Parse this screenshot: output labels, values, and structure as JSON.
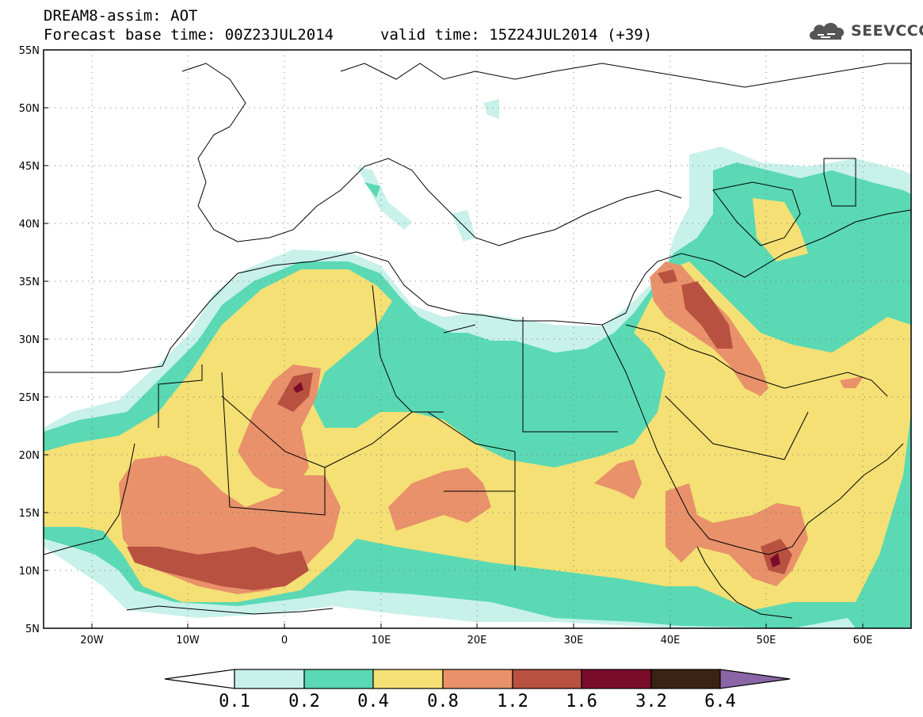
{
  "header": {
    "title": "DREAM8-assim: AOT",
    "base_time": "Forecast base time: 00Z23JUL2014",
    "valid_time": "valid time: 15Z24JUL2014 (+39)",
    "logo_text": "SEEVCCC",
    "logo_icon": "cloud-icon"
  },
  "map": {
    "lat_labels": [
      "55N",
      "50N",
      "45N",
      "40N",
      "35N",
      "30N",
      "25N",
      "20N",
      "15N",
      "10N",
      "5N"
    ],
    "lon_labels": [
      "20W",
      "10W",
      "0",
      "10E",
      "20E",
      "30E",
      "40E",
      "50E",
      "60E"
    ],
    "colors": {
      "c01": "#c8f1ea",
      "c02": "#5ad9b4",
      "c04": "#f4e074",
      "c08": "#e8916a",
      "c12": "#b8513f",
      "c16": "#7a0c2b",
      "c32": "#3a2214",
      "c64": "#8a66a6"
    }
  },
  "colorbar": {
    "labels": [
      "0.1",
      "0.2",
      "0.4",
      "0.8",
      "1.2",
      "1.6",
      "3.2",
      "6.4"
    ]
  }
}
